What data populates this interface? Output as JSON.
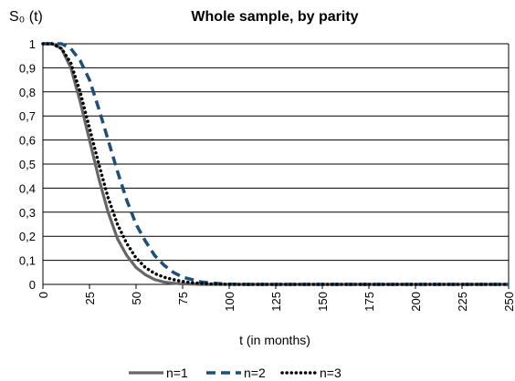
{
  "chart_data": {
    "type": "line",
    "title": "Whole sample, by parity",
    "ylabel": "S₀ (t)",
    "xlabel": "t (in months)",
    "xlim": [
      0,
      250
    ],
    "ylim": [
      0,
      1
    ],
    "x_ticks": [
      "0",
      "25",
      "50",
      "75",
      "100",
      "125",
      "150",
      "175",
      "200",
      "225",
      "250"
    ],
    "y_ticks": [
      "0",
      "0,1",
      "0,2",
      "0,3",
      "0,4",
      "0,5",
      "0,6",
      "0,7",
      "0,8",
      "0,9",
      "1"
    ],
    "grid": "horizontal",
    "legend_position": "bottom",
    "x": [
      0,
      5,
      10,
      15,
      20,
      25,
      30,
      35,
      40,
      45,
      50,
      55,
      60,
      65,
      70,
      75,
      80,
      85,
      90,
      95,
      100,
      110,
      125,
      150,
      175,
      200,
      225,
      250
    ],
    "series": [
      {
        "name": "n=1",
        "color": "#666666",
        "style": "solid",
        "values": [
          1,
          1,
          0.98,
          0.9,
          0.76,
          0.6,
          0.44,
          0.3,
          0.19,
          0.12,
          0.07,
          0.04,
          0.02,
          0.01,
          0.005,
          0.002,
          0.001,
          0,
          0,
          0,
          0,
          0,
          0,
          0,
          0,
          0,
          0,
          0
        ]
      },
      {
        "name": "n=2",
        "color": "#1f4e79",
        "style": "dash",
        "values": [
          1,
          1,
          1,
          0.98,
          0.93,
          0.85,
          0.73,
          0.6,
          0.47,
          0.35,
          0.25,
          0.18,
          0.12,
          0.08,
          0.05,
          0.03,
          0.02,
          0.01,
          0.006,
          0.003,
          0.001,
          0,
          0,
          0,
          0,
          0,
          0,
          0
        ]
      },
      {
        "name": "n=3",
        "color": "#000000",
        "style": "dot",
        "values": [
          1,
          1,
          0.98,
          0.92,
          0.8,
          0.65,
          0.5,
          0.36,
          0.25,
          0.17,
          0.11,
          0.07,
          0.045,
          0.03,
          0.02,
          0.012,
          0.007,
          0.004,
          0.002,
          0.001,
          0,
          0,
          0,
          0,
          0,
          0,
          0,
          0
        ]
      }
    ]
  }
}
